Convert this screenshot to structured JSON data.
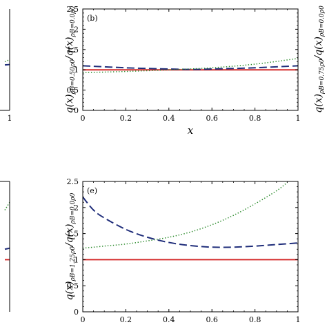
{
  "chart_data": [
    {
      "type": "line",
      "panel": "left-top",
      "label": "",
      "xticks": [
        "1"
      ],
      "yticks": [],
      "ylabel": [],
      "series": [
        {
          "name": "",
          "color": "#2a8a2a",
          "style": "dotted",
          "x": [
            0.9,
            1.0
          ],
          "y": [
            1.2,
            1.25
          ]
        },
        {
          "name": "",
          "color": "#1f2d7a",
          "style": "dashed",
          "x": [
            0.9,
            1.0
          ],
          "y": [
            1.12,
            1.13
          ]
        }
      ]
    },
    {
      "type": "line",
      "panel": "b",
      "label": "(b)",
      "xlabel": "x",
      "ylabel": [
        {
          "t": "q",
          "sub": false
        },
        {
          "t": "(x)",
          "sub": false
        },
        {
          "t": "ρB=0.50ρ0",
          "sub": true
        },
        {
          "t": "/",
          "sub": false
        },
        {
          "t": "q",
          "sub": false
        },
        {
          "t": "(x)",
          "sub": false
        },
        {
          "t": "ρB=0.0ρ0",
          "sub": true
        }
      ],
      "xlim": [
        0,
        1
      ],
      "ylim": [
        0,
        2.5
      ],
      "xticks": [
        "0",
        "0.2",
        "0.4",
        "0.6",
        "0.8",
        "1"
      ],
      "yticks": [
        "0",
        "0.5",
        "1",
        "1.5",
        "2",
        "2.5"
      ],
      "series": [
        {
          "name": "",
          "color": "#d42a2a",
          "style": "solid",
          "x": [
            0,
            0.5,
            1
          ],
          "y": [
            1.0,
            1.0,
            1.0
          ]
        },
        {
          "name": "",
          "color": "#1f2d7a",
          "style": "dashed",
          "x": [
            0,
            0.2,
            0.4,
            0.5,
            0.6,
            0.8,
            1
          ],
          "y": [
            1.1,
            1.05,
            1.02,
            1.01,
            1.02,
            1.05,
            1.1
          ]
        },
        {
          "name": "",
          "color": "#2a8a2a",
          "style": "dotted",
          "x": [
            0,
            0.2,
            0.4,
            0.6,
            0.8,
            1
          ],
          "y": [
            0.93,
            0.96,
            1.0,
            1.05,
            1.14,
            1.28
          ]
        }
      ]
    },
    {
      "type": "line",
      "panel": "e",
      "label": "(e)",
      "xlabel": "x",
      "ylabel": [
        {
          "t": "q",
          "sub": false
        },
        {
          "t": "(x)",
          "sub": false
        },
        {
          "t": "ρB=1.25ρ0",
          "sub": true
        },
        {
          "t": "/",
          "sub": false
        },
        {
          "t": "q",
          "sub": false
        },
        {
          "t": "(x)",
          "sub": false
        },
        {
          "t": "ρB=0.0ρ0",
          "sub": true
        }
      ],
      "xlim": [
        0,
        1
      ],
      "ylim": [
        0,
        2.5
      ],
      "xticks": [
        "0",
        "0.2",
        "0.4",
        "0.6",
        "0.8",
        "1"
      ],
      "yticks": [
        "0",
        "0.5",
        "1",
        "1.5",
        "2",
        "2.5"
      ],
      "series": [
        {
          "name": "",
          "color": "#d42a2a",
          "style": "solid",
          "x": [
            0,
            0.5,
            1
          ],
          "y": [
            1.0,
            1.0,
            1.0
          ]
        },
        {
          "name": "",
          "color": "#1f2d7a",
          "style": "dashed",
          "x": [
            0,
            0.05,
            0.1,
            0.2,
            0.3,
            0.4,
            0.5,
            0.6,
            0.7,
            0.8,
            0.9,
            1
          ],
          "y": [
            2.2,
            1.95,
            1.8,
            1.58,
            1.43,
            1.33,
            1.27,
            1.24,
            1.24,
            1.26,
            1.29,
            1.32
          ]
        },
        {
          "name": "",
          "color": "#2a8a2a",
          "style": "dotted",
          "x": [
            0,
            0.1,
            0.2,
            0.3,
            0.4,
            0.5,
            0.6,
            0.7,
            0.8,
            0.9,
            0.95
          ],
          "y": [
            1.22,
            1.26,
            1.3,
            1.36,
            1.43,
            1.53,
            1.67,
            1.85,
            2.07,
            2.32,
            2.48
          ]
        }
      ]
    },
    {
      "type": "line",
      "panel": "left-bottom",
      "label": "",
      "xticks": [],
      "yticks": [],
      "ylabel": [],
      "series": [
        {
          "name": "",
          "color": "#2a8a2a",
          "style": "dotted",
          "x": [
            0.9,
            1.0
          ],
          "y": [
            1.95,
            2.1
          ]
        },
        {
          "name": "",
          "color": "#1f2d7a",
          "style": "dashed",
          "x": [
            0.9,
            1.0
          ],
          "y": [
            1.2,
            1.22
          ]
        },
        {
          "name": "",
          "color": "#d42a2a",
          "style": "solid",
          "x": [
            0.9,
            1.0
          ],
          "y": [
            1.0,
            1.0
          ]
        }
      ]
    },
    {
      "type": "line",
      "panel": "right-top",
      "label": "",
      "xticks": [],
      "yticks": [],
      "ylabel": [
        {
          "t": "q",
          "sub": false
        },
        {
          "t": "(x)",
          "sub": false
        },
        {
          "t": "ρB=0.75ρ0",
          "sub": true
        },
        {
          "t": "/",
          "sub": false
        },
        {
          "t": "q",
          "sub": false
        },
        {
          "t": "(x)",
          "sub": false
        },
        {
          "t": "ρB=0.0ρ0",
          "sub": true
        }
      ],
      "series": []
    }
  ]
}
